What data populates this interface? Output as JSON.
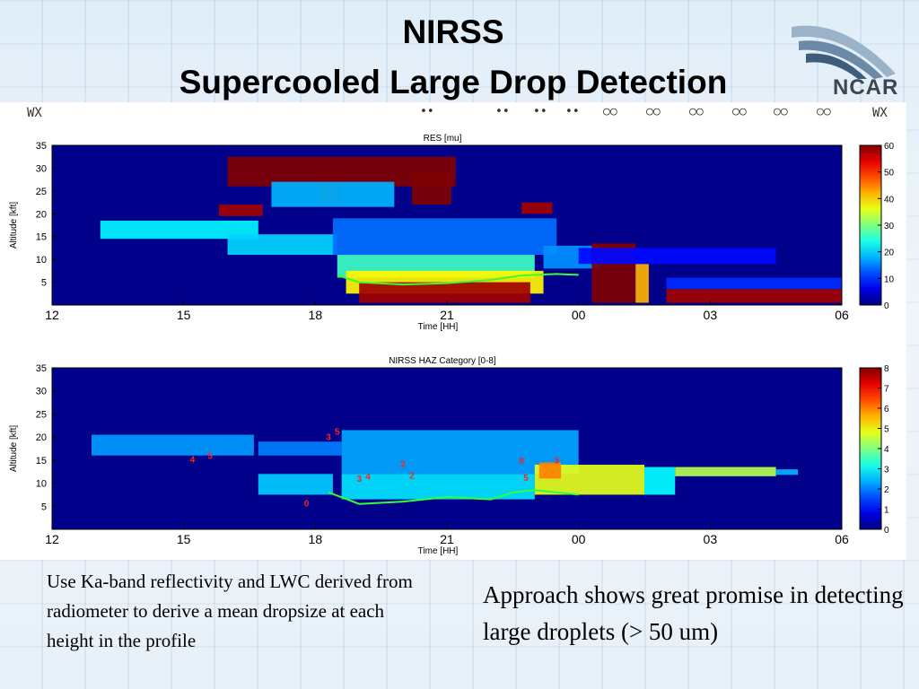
{
  "slide": {
    "title_line1": "NIRSS",
    "title_line2": "Supercooled Large Drop Detection",
    "logo_text": "NCAR",
    "wx_left": "WX",
    "wx_right": "WX",
    "wx_symbols": [
      "••",
      "••",
      "••",
      "••",
      "○○",
      "○○",
      "○○",
      "○○",
      "○○",
      "○○"
    ],
    "caption_left": "Use Ka-band reflectivity and LWC derived from radiometer to derive a mean dropsize at each height in the profile",
    "caption_right": "Approach shows great promise in detecting large droplets (> 50 um)",
    "colors": {
      "field_background": "#00008b",
      "freezing_line": "#33ff33",
      "category_labels": "#ff2020"
    }
  },
  "chart_data": [
    {
      "type": "heatmap",
      "title": "RES [mu]",
      "xlabel": "Time [HH]",
      "ylabel": "Altitude [kft]",
      "x_ticks": [
        "12",
        "15",
        "18",
        "21",
        "00",
        "03",
        "06"
      ],
      "y_ticks": [
        "5",
        "10",
        "15",
        "20",
        "25",
        "30",
        "35"
      ],
      "colorbar_ticks": [
        "0",
        "10",
        "20",
        "30",
        "40",
        "50",
        "60"
      ],
      "xlim": [
        12,
        30
      ],
      "ylim": [
        0,
        35
      ],
      "clim": [
        0,
        60
      ],
      "line": {
        "name": "",
        "x": [
          18.5,
          19.0,
          20.0,
          21.0,
          22.0,
          22.7,
          23.5,
          24.0
        ],
        "y": [
          6.5,
          5.0,
          4.5,
          4.8,
          5.5,
          6.5,
          6.8,
          6.6
        ]
      },
      "regions": [
        {
          "t": [
            13.1,
            16.7
          ],
          "a": [
            14.5,
            18.5
          ],
          "v": 22
        },
        {
          "t": [
            15.8,
            16.8
          ],
          "a": [
            19.5,
            22.0
          ],
          "v": 58
        },
        {
          "t": [
            16.0,
            21.2
          ],
          "a": [
            26.0,
            32.5
          ],
          "v": 60
        },
        {
          "t": [
            18.1,
            18.5
          ],
          "a": [
            22.0,
            27.0
          ],
          "v": 60
        },
        {
          "t": [
            20.2,
            21.1
          ],
          "a": [
            22.0,
            29.0
          ],
          "v": 60
        },
        {
          "t": [
            17.0,
            19.8
          ],
          "a": [
            21.5,
            27.0
          ],
          "v": 18
        },
        {
          "t": [
            16.0,
            18.5
          ],
          "a": [
            11.0,
            15.5
          ],
          "v": 20
        },
        {
          "t": [
            18.4,
            23.5
          ],
          "a": [
            11.0,
            19.0
          ],
          "v": 14
        },
        {
          "t": [
            18.5,
            23.0
          ],
          "a": [
            6.0,
            11.0
          ],
          "v": 26
        },
        {
          "t": [
            18.7,
            23.2
          ],
          "a": [
            2.5,
            7.5
          ],
          "v": 38
        },
        {
          "t": [
            19.0,
            22.9
          ],
          "a": [
            0.5,
            5.0
          ],
          "v": 58
        },
        {
          "t": [
            22.7,
            23.4
          ],
          "a": [
            20.0,
            22.5
          ],
          "v": 58
        },
        {
          "t": [
            23.2,
            24.5
          ],
          "a": [
            8.0,
            13.0
          ],
          "v": 16
        },
        {
          "t": [
            24.3,
            25.3
          ],
          "a": [
            0.5,
            13.5
          ],
          "v": 60
        },
        {
          "t": [
            25.3,
            25.6
          ],
          "a": [
            0.5,
            9.0
          ],
          "v": 42
        },
        {
          "t": [
            24.0,
            28.5
          ],
          "a": [
            9.0,
            12.5
          ],
          "v": 8
        },
        {
          "t": [
            26.0,
            30.0
          ],
          "a": [
            0.5,
            3.5
          ],
          "v": 58
        },
        {
          "t": [
            26.0,
            30.0
          ],
          "a": [
            3.5,
            6.0
          ],
          "v": 10
        }
      ]
    },
    {
      "type": "heatmap",
      "title": "NIRSS HAZ Category [0-8]",
      "xlabel": "Time [HH]",
      "ylabel": "Altitude [kft]",
      "x_ticks": [
        "12",
        "15",
        "18",
        "21",
        "00",
        "03",
        "06"
      ],
      "y_ticks": [
        "5",
        "10",
        "15",
        "20",
        "25",
        "30",
        "35"
      ],
      "colorbar_ticks": [
        "0",
        "1",
        "2",
        "3",
        "4",
        "5",
        "6",
        "7",
        "8"
      ],
      "xlim": [
        12,
        30
      ],
      "ylim": [
        0,
        35
      ],
      "clim": [
        0,
        8
      ],
      "line": {
        "name": "",
        "x": [
          18.3,
          19.0,
          20.0,
          21.0,
          22.0,
          22.5,
          23.0,
          24.0
        ],
        "y": [
          8.0,
          5.5,
          6.0,
          7.0,
          6.5,
          8.0,
          8.5,
          7.5
        ]
      },
      "regions": [
        {
          "t": [
            12.9,
            16.6
          ],
          "a": [
            16.0,
            20.5
          ],
          "v": 2.2
        },
        {
          "t": [
            16.7,
            18.6
          ],
          "a": [
            16.0,
            19.0
          ],
          "v": 2.0
        },
        {
          "t": [
            16.7,
            18.4
          ],
          "a": [
            7.5,
            12.0
          ],
          "v": 2.6
        },
        {
          "t": [
            18.6,
            24.0
          ],
          "a": [
            12.0,
            21.5
          ],
          "v": 2.3
        },
        {
          "t": [
            18.6,
            23.0
          ],
          "a": [
            6.5,
            12.0
          ],
          "v": 2.8
        },
        {
          "t": [
            23.0,
            25.5
          ],
          "a": [
            7.5,
            14.0
          ],
          "v": 4.8
        },
        {
          "t": [
            23.1,
            23.6
          ],
          "a": [
            11.0,
            14.5
          ],
          "v": 6.0
        },
        {
          "t": [
            25.5,
            26.2
          ],
          "a": [
            7.5,
            13.5
          ],
          "v": 3.0
        },
        {
          "t": [
            26.2,
            28.5
          ],
          "a": [
            11.5,
            13.5
          ],
          "v": 4.4
        },
        {
          "t": [
            28.5,
            29.0
          ],
          "a": [
            11.8,
            13.0
          ],
          "v": 2.4
        }
      ],
      "annotations": [
        {
          "text": "5",
          "t": 18.5,
          "a": 20.5
        },
        {
          "text": "3",
          "t": 18.3,
          "a": 19.3
        },
        {
          "text": "4",
          "t": 15.2,
          "a": 14.5
        },
        {
          "text": "5",
          "t": 15.6,
          "a": 15.3
        },
        {
          "text": "3",
          "t": 19.0,
          "a": 10.3
        },
        {
          "text": "4",
          "t": 19.2,
          "a": 10.8
        },
        {
          "text": "2",
          "t": 20.0,
          "a": 13.5
        },
        {
          "text": "2",
          "t": 20.2,
          "a": 11.0
        },
        {
          "text": "8",
          "t": 22.7,
          "a": 14.2
        },
        {
          "text": "5",
          "t": 22.8,
          "a": 10.5
        },
        {
          "text": "3",
          "t": 23.5,
          "a": 14.3
        },
        {
          "text": "0",
          "t": 17.8,
          "a": 5.0
        }
      ]
    }
  ]
}
